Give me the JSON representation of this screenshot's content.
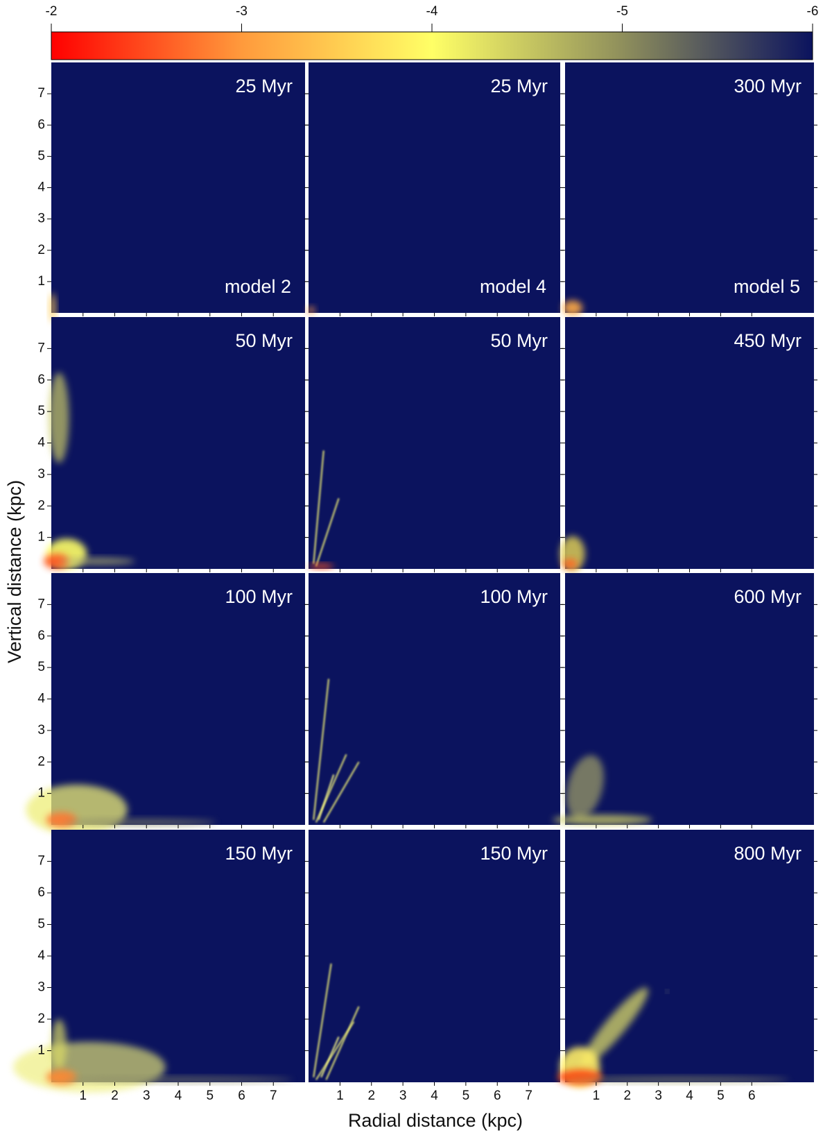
{
  "colorbar": {
    "lim": [
      -2,
      -6
    ],
    "ticks": [
      -2,
      -3,
      -4,
      -5,
      -6
    ],
    "colors": [
      "#ff0000",
      "#ff9a3c",
      "#ffff66",
      "#8f8f5c",
      "#0b135e"
    ]
  },
  "x_label": "Radial distance (kpc)",
  "y_label": "Vertical distance (kpc)",
  "xlim": [
    0,
    8
  ],
  "ylim": [
    0,
    8
  ],
  "xticks": [
    [
      1,
      2,
      3,
      4,
      5,
      6,
      7
    ],
    [
      1,
      2,
      3,
      4,
      5,
      6,
      7
    ],
    [
      1,
      2,
      3,
      4,
      5,
      6
    ]
  ],
  "yticks": [
    1,
    2,
    3,
    4,
    5,
    6,
    7
  ],
  "panels": [
    [
      {
        "time": "25 Myr",
        "model": "model 2"
      },
      {
        "time": "25 Myr",
        "model": "model 4"
      },
      {
        "time": "300 Myr",
        "model": "model 5"
      }
    ],
    [
      {
        "time": "50 Myr"
      },
      {
        "time": "50 Myr"
      },
      {
        "time": "450 Myr"
      }
    ],
    [
      {
        "time": "100 Myr"
      },
      {
        "time": "100 Myr"
      },
      {
        "time": "600 Myr"
      }
    ],
    [
      {
        "time": "150 Myr"
      },
      {
        "time": "150 Myr"
      },
      {
        "time": "800 Myr"
      }
    ]
  ]
}
